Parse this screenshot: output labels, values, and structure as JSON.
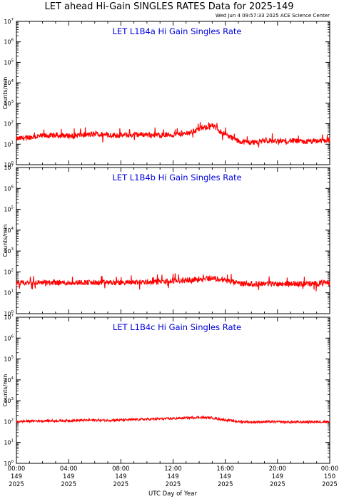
{
  "title": "LET ahead Hi-Gain SINGLES RATES Data for 2025-149",
  "subtitle": "Wed Jun  4 09:57:33 2025 ACE Science Center",
  "colors": {
    "series": "#ff0000",
    "panel_title": "#0000dd",
    "axes": "#000000"
  },
  "chart_data": [
    {
      "type": "line",
      "title": "LET L1B4a Hi Gain Singles Rate",
      "ylabel": "Counts/min",
      "yscale": "log",
      "ylim": [
        1,
        10000000
      ],
      "yticks": [
        {
          "base": "10",
          "exp": "0"
        },
        {
          "base": "10",
          "exp": "1"
        },
        {
          "base": "10",
          "exp": "2"
        },
        {
          "base": "10",
          "exp": "3"
        },
        {
          "base": "10",
          "exp": "4"
        },
        {
          "base": "10",
          "exp": "5"
        },
        {
          "base": "10",
          "exp": "6"
        },
        {
          "base": "10",
          "exp": "7"
        }
      ],
      "xlim": [
        "2025-149 00:00",
        "2025-150 00:00"
      ],
      "series": [
        {
          "x": [
            "00:00",
            "01:00",
            "02:00",
            "03:00",
            "04:00",
            "05:00",
            "06:00",
            "07:00",
            "08:00",
            "09:00",
            "10:00",
            "11:00",
            "12:00",
            "13:00",
            "14:00",
            "15:00",
            "16:00",
            "17:00",
            "18:00",
            "19:00",
            "20:00",
            "21:00",
            "22:00",
            "23:00",
            "24:00"
          ],
          "values": [
            18,
            22,
            25,
            27,
            26,
            28,
            30,
            28,
            27,
            29,
            30,
            28,
            29,
            32,
            55,
            80,
            30,
            14,
            12,
            15,
            14,
            15,
            13,
            14,
            16
          ]
        }
      ]
    },
    {
      "type": "line",
      "title": "LET L1B4b Hi Gain Singles Rate",
      "ylabel": "Counts/min",
      "yscale": "log",
      "ylim": [
        1,
        10000000
      ],
      "yticks": [
        {
          "base": "10",
          "exp": "0"
        },
        {
          "base": "10",
          "exp": "1"
        },
        {
          "base": "10",
          "exp": "2"
        },
        {
          "base": "10",
          "exp": "3"
        },
        {
          "base": "10",
          "exp": "4"
        },
        {
          "base": "10",
          "exp": "5"
        },
        {
          "base": "10",
          "exp": "6"
        },
        {
          "base": "10",
          "exp": "7"
        }
      ],
      "xlim": [
        "2025-149 00:00",
        "2025-150 00:00"
      ],
      "series": [
        {
          "x": [
            "00:00",
            "01:00",
            "02:00",
            "03:00",
            "04:00",
            "05:00",
            "06:00",
            "07:00",
            "08:00",
            "09:00",
            "10:00",
            "11:00",
            "12:00",
            "13:00",
            "14:00",
            "15:00",
            "16:00",
            "17:00",
            "18:00",
            "19:00",
            "20:00",
            "21:00",
            "22:00",
            "23:00",
            "24:00"
          ],
          "values": [
            28,
            30,
            32,
            31,
            30,
            32,
            30,
            31,
            30,
            32,
            33,
            34,
            36,
            40,
            45,
            50,
            40,
            28,
            27,
            28,
            27,
            28,
            27,
            28,
            30
          ]
        }
      ]
    },
    {
      "type": "line",
      "title": "LET L1B4c Hi Gain Singles Rate",
      "ylabel": "Counts/min",
      "yscale": "log",
      "ylim": [
        1,
        10000000
      ],
      "yticks": [
        {
          "base": "10",
          "exp": "0"
        },
        {
          "base": "10",
          "exp": "1"
        },
        {
          "base": "10",
          "exp": "2"
        },
        {
          "base": "10",
          "exp": "3"
        },
        {
          "base": "10",
          "exp": "4"
        },
        {
          "base": "10",
          "exp": "5"
        },
        {
          "base": "10",
          "exp": "6"
        },
        {
          "base": "10",
          "exp": "7"
        }
      ],
      "xlim": [
        "2025-149 00:00",
        "2025-150 00:00"
      ],
      "series": [
        {
          "x": [
            "00:00",
            "01:00",
            "02:00",
            "03:00",
            "04:00",
            "05:00",
            "06:00",
            "07:00",
            "08:00",
            "09:00",
            "10:00",
            "11:00",
            "12:00",
            "13:00",
            "14:00",
            "15:00",
            "16:00",
            "17:00",
            "18:00",
            "19:00",
            "20:00",
            "21:00",
            "22:00",
            "23:00",
            "24:00"
          ],
          "values": [
            100,
            105,
            110,
            108,
            112,
            115,
            118,
            115,
            120,
            125,
            130,
            135,
            140,
            150,
            160,
            150,
            120,
            100,
            95,
            98,
            97,
            95,
            96,
            98,
            100
          ]
        }
      ]
    }
  ],
  "x_axis": {
    "label": "UTC Day of Year",
    "ticks": [
      {
        "hour": 0,
        "time": "00:00",
        "doy": "149",
        "year": "2025"
      },
      {
        "hour": 4,
        "time": "04:00",
        "doy": "149",
        "year": "2025"
      },
      {
        "hour": 8,
        "time": "08:00",
        "doy": "149",
        "year": "2025"
      },
      {
        "hour": 12,
        "time": "12:00",
        "doy": "149",
        "year": "2025"
      },
      {
        "hour": 16,
        "time": "16:00",
        "doy": "149",
        "year": "2025"
      },
      {
        "hour": 20,
        "time": "20:00",
        "doy": "149",
        "year": "2025"
      },
      {
        "hour": 24,
        "time": "00:00",
        "doy": "150",
        "year": "2025"
      }
    ]
  }
}
